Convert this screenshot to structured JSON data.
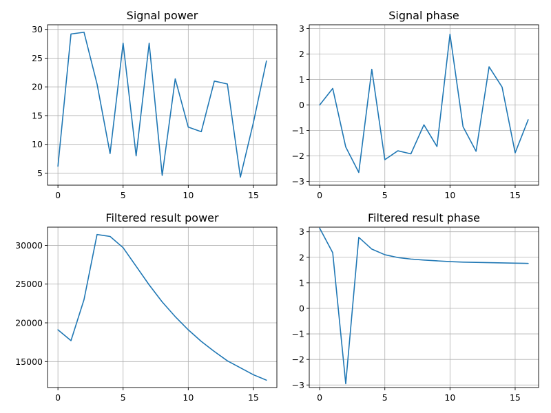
{
  "chart_data": [
    {
      "type": "line",
      "title": "Signal power",
      "x": [
        0,
        1,
        2,
        3,
        4,
        5,
        6,
        7,
        8,
        9,
        10,
        11,
        12,
        13,
        14,
        15,
        16
      ],
      "y": [
        6.2,
        29.2,
        29.5,
        20.5,
        8.4,
        27.6,
        8.0,
        27.6,
        4.6,
        21.4,
        13.0,
        12.2,
        21.0,
        20.5,
        4.3,
        13.8,
        24.5
      ],
      "xlim": [
        -0.8,
        16.8
      ],
      "ylim": [
        2.9,
        30.8
      ],
      "xticks": [
        0,
        5,
        10,
        15
      ],
      "yticks": [
        5,
        10,
        15,
        20,
        25,
        30
      ],
      "xtick_labels": [
        "0",
        "5",
        "10",
        "15"
      ],
      "ytick_labels": [
        "5",
        "10",
        "15",
        "20",
        "25",
        "30"
      ],
      "grid": true,
      "color": "#1f77b4"
    },
    {
      "type": "line",
      "title": "Signal phase",
      "x": [
        0,
        1,
        2,
        3,
        4,
        5,
        6,
        7,
        8,
        9,
        10,
        11,
        12,
        13,
        14,
        15,
        16
      ],
      "y": [
        0.0,
        0.65,
        -1.65,
        -2.65,
        1.4,
        -2.15,
        -1.8,
        -1.92,
        -0.78,
        -1.63,
        2.78,
        -0.85,
        -1.82,
        1.5,
        0.7,
        -1.88,
        -0.58
      ],
      "xlim": [
        -0.8,
        16.8
      ],
      "ylim": [
        -3.15,
        3.15
      ],
      "xticks": [
        0,
        5,
        10,
        15
      ],
      "yticks": [
        -3,
        -2,
        -1,
        0,
        1,
        2,
        3
      ],
      "xtick_labels": [
        "0",
        "5",
        "10",
        "15"
      ],
      "ytick_labels": [
        "−3",
        "−2",
        "−1",
        "0",
        "1",
        "2",
        "3"
      ],
      "grid": true,
      "color": "#1f77b4"
    },
    {
      "type": "line",
      "title": "Filtered result power",
      "x": [
        0,
        1,
        2,
        3,
        4,
        5,
        6,
        7,
        8,
        9,
        10,
        11,
        12,
        13,
        14,
        15,
        16
      ],
      "y": [
        19100,
        17700,
        23000,
        31400,
        31150,
        29700,
        27300,
        24900,
        22700,
        20800,
        19100,
        17600,
        16300,
        15100,
        14200,
        13300,
        12600
      ],
      "xlim": [
        -0.8,
        16.8
      ],
      "ylim": [
        11650,
        32350
      ],
      "xticks": [
        0,
        5,
        10,
        15
      ],
      "yticks": [
        15000,
        20000,
        25000,
        30000
      ],
      "xtick_labels": [
        "0",
        "5",
        "10",
        "15"
      ],
      "ytick_labels": [
        "15000",
        "20000",
        "25000",
        "30000"
      ],
      "grid": true,
      "color": "#1f77b4"
    },
    {
      "type": "line",
      "title": "Filtered result phase",
      "x": [
        0,
        1,
        2,
        3,
        4,
        5,
        6,
        7,
        8,
        9,
        10,
        11,
        12,
        13,
        14,
        15,
        16
      ],
      "y": [
        3.14,
        2.18,
        -2.95,
        2.78,
        2.32,
        2.1,
        1.99,
        1.93,
        1.89,
        1.86,
        1.83,
        1.81,
        1.8,
        1.79,
        1.78,
        1.77,
        1.76
      ],
      "xlim": [
        -0.8,
        16.8
      ],
      "ylim": [
        -3.1,
        3.18
      ],
      "xticks": [
        0,
        5,
        10,
        15
      ],
      "yticks": [
        -3,
        -2,
        -1,
        0,
        1,
        2,
        3
      ],
      "xtick_labels": [
        "0",
        "5",
        "10",
        "15"
      ],
      "ytick_labels": [
        "−3",
        "−2",
        "−1",
        "0",
        "1",
        "2",
        "3"
      ],
      "grid": true,
      "color": "#1f77b4"
    }
  ]
}
